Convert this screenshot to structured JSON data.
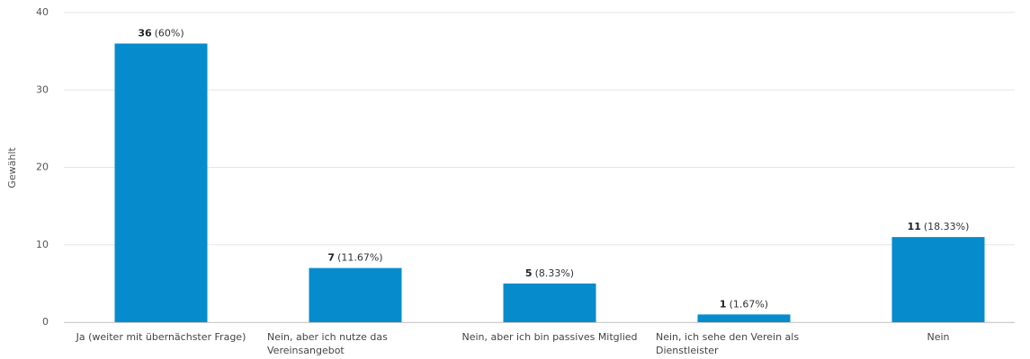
{
  "chart_data": {
    "type": "bar",
    "y_label": "Gewählt",
    "categories": [
      "Ja (weiter mit übernächster Frage)",
      "Nein, aber ich nutze das Vereinsangebot",
      "Nein, aber ich bin passives Mitglied",
      "Nein, ich sehe den Verein als Dienstleister",
      "Nein"
    ],
    "values": [
      36,
      7,
      5,
      1,
      11
    ],
    "percent_labels": [
      "(60%)",
      "(11.67%)",
      "(8.33%)",
      "(1.67%)",
      "(18.33%)"
    ],
    "color": "#068ccc",
    "ylim": [
      0,
      40
    ],
    "yticks": [
      0,
      10,
      20,
      30,
      40
    ],
    "grid": true
  }
}
